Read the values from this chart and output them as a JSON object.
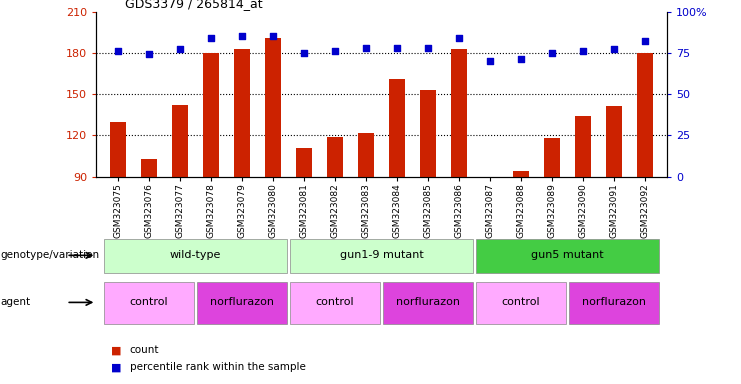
{
  "title": "GDS3379 / 265814_at",
  "samples": [
    "GSM323075",
    "GSM323076",
    "GSM323077",
    "GSM323078",
    "GSM323079",
    "GSM323080",
    "GSM323081",
    "GSM323082",
    "GSM323083",
    "GSM323084",
    "GSM323085",
    "GSM323086",
    "GSM323087",
    "GSM323088",
    "GSM323089",
    "GSM323090",
    "GSM323091",
    "GSM323092"
  ],
  "counts": [
    130,
    103,
    142,
    180,
    183,
    191,
    111,
    119,
    122,
    161,
    153,
    183,
    90,
    94,
    118,
    134,
    141,
    180
  ],
  "percentile_ranks": [
    76,
    74,
    77,
    84,
    85,
    85,
    75,
    76,
    78,
    78,
    78,
    84,
    70,
    71,
    75,
    76,
    77,
    82
  ],
  "ylim_left": [
    90,
    210
  ],
  "ylim_right": [
    0,
    100
  ],
  "yticks_left": [
    90,
    120,
    150,
    180,
    210
  ],
  "yticks_right": [
    0,
    25,
    50,
    75,
    100
  ],
  "ytick_labels_right": [
    "0",
    "25",
    "50",
    "75",
    "100%"
  ],
  "bar_color": "#cc2200",
  "dot_color": "#0000cc",
  "bar_width": 0.5,
  "hline_values": [
    120,
    150,
    180
  ],
  "group_colors": [
    "#ccffcc",
    "#ccffcc",
    "#44cc44"
  ],
  "group_ranges": [
    [
      0,
      6
    ],
    [
      6,
      12
    ],
    [
      12,
      18
    ]
  ],
  "group_labels": [
    "wild-type",
    "gun1-9 mutant",
    "gun5 mutant"
  ],
  "agent_labels": [
    "control",
    "norflurazon",
    "control",
    "norflurazon",
    "control",
    "norflurazon"
  ],
  "agent_ranges": [
    [
      0,
      3
    ],
    [
      3,
      6
    ],
    [
      6,
      9
    ],
    [
      9,
      12
    ],
    [
      12,
      15
    ],
    [
      15,
      18
    ]
  ],
  "agent_colors": [
    "#ffaaff",
    "#dd44dd",
    "#ffaaff",
    "#dd44dd",
    "#ffaaff",
    "#dd44dd"
  ],
  "legend_count_color": "#cc2200",
  "legend_pct_color": "#0000cc",
  "genotype_label": "genotype/variation",
  "agent_label": "agent",
  "count_label": "count",
  "pct_label": "percentile rank within the sample"
}
